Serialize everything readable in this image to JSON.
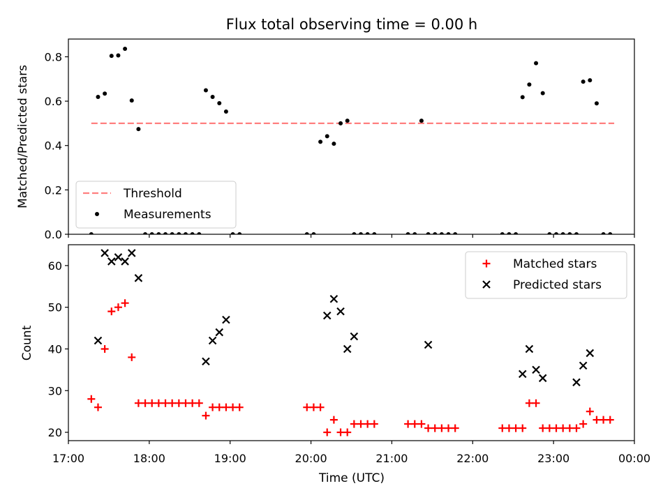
{
  "chart_data": [
    {
      "type": "scatter",
      "title": "Flux total observing time = 0.00 h",
      "xlabel": "",
      "ylabel": "Matched/Predicted stars",
      "xlim": [
        "17:00",
        "00:00"
      ],
      "ylim": [
        0,
        0.88
      ],
      "y_ticks": [
        "0.0",
        "0.2",
        "0.4",
        "0.6",
        "0.8"
      ],
      "grid": false,
      "legend": "lower-left",
      "series": [
        {
          "name": "Threshold",
          "kind": "dashed-line",
          "color": "#ff7f7f",
          "x": [
            "17:17",
            "23:45"
          ],
          "y": [
            0.5,
            0.5
          ]
        },
        {
          "name": "Measurements",
          "kind": "dot",
          "color": "#000000",
          "x": [
            "17:17",
            "17:22",
            "17:27",
            "17:32",
            "17:37",
            "17:42",
            "17:47",
            "17:52",
            "17:57",
            "18:02",
            "18:07",
            "18:12",
            "18:17",
            "18:22",
            "18:27",
            "18:32",
            "18:37",
            "18:42",
            "18:47",
            "18:52",
            "18:57",
            "19:02",
            "19:07",
            "19:57",
            "20:02",
            "20:07",
            "20:12",
            "20:17",
            "20:22",
            "20:27",
            "20:32",
            "20:37",
            "20:42",
            "20:47",
            "21:12",
            "21:17",
            "21:22",
            "21:27",
            "21:32",
            "21:37",
            "21:42",
            "21:47",
            "22:22",
            "22:27",
            "22:32",
            "22:37",
            "22:42",
            "22:47",
            "22:52",
            "22:57",
            "23:02",
            "23:07",
            "23:12",
            "23:17",
            "23:22",
            "23:27",
            "23:32",
            "23:37",
            "23:42"
          ],
          "y": [
            0.0,
            0.619,
            0.634,
            0.804,
            0.806,
            0.836,
            0.603,
            0.474,
            0.0,
            0.0,
            0.0,
            0.0,
            0.0,
            0.0,
            0.0,
            0.0,
            0.0,
            0.649,
            0.619,
            0.591,
            0.553,
            0.0,
            0.0,
            0.0,
            0.0,
            0.417,
            0.442,
            0.408,
            0.5,
            0.512,
            0.0,
            0.0,
            0.0,
            0.0,
            0.0,
            0.0,
            0.512,
            0.0,
            0.0,
            0.0,
            0.0,
            0.0,
            0.0,
            0.0,
            0.0,
            0.618,
            0.675,
            0.771,
            0.636,
            0.0,
            0.0,
            0.0,
            0.0,
            0.0,
            0.688,
            0.694,
            0.59,
            0.0,
            0.0
          ]
        }
      ]
    },
    {
      "type": "scatter",
      "title": "",
      "xlabel": "Time (UTC)",
      "ylabel": "Count",
      "xlim": [
        "17:00",
        "00:00"
      ],
      "ylim": [
        18,
        65
      ],
      "x_ticks": [
        "17:00",
        "18:00",
        "19:00",
        "20:00",
        "21:00",
        "22:00",
        "23:00",
        "00:00"
      ],
      "y_ticks": [
        "20",
        "30",
        "40",
        "50",
        "60"
      ],
      "grid": false,
      "legend": "upper-right",
      "series": [
        {
          "name": "Matched stars",
          "marker": "plus",
          "color": "#ff0000",
          "x": [
            "17:17",
            "17:22",
            "17:27",
            "17:32",
            "17:37",
            "17:42",
            "17:47",
            "17:52",
            "17:57",
            "18:02",
            "18:07",
            "18:12",
            "18:17",
            "18:22",
            "18:27",
            "18:32",
            "18:37",
            "18:42",
            "18:47",
            "18:52",
            "18:57",
            "19:02",
            "19:07",
            "19:57",
            "20:02",
            "20:07",
            "20:12",
            "20:17",
            "20:22",
            "20:27",
            "20:32",
            "20:37",
            "20:42",
            "20:47",
            "21:12",
            "21:17",
            "21:22",
            "21:27",
            "21:32",
            "21:37",
            "21:42",
            "21:47",
            "22:22",
            "22:27",
            "22:32",
            "22:37",
            "22:42",
            "22:47",
            "22:52",
            "22:57",
            "23:02",
            "23:07",
            "23:12",
            "23:17",
            "23:22",
            "23:27",
            "23:32",
            "23:37",
            "23:42"
          ],
          "y": [
            28,
            26,
            40,
            49,
            50,
            51,
            38,
            27,
            27,
            27,
            27,
            27,
            27,
            27,
            27,
            27,
            27,
            24,
            26,
            26,
            26,
            26,
            26,
            26,
            26,
            26,
            20,
            23,
            20,
            20,
            22,
            22,
            22,
            22,
            22,
            22,
            22,
            21,
            21,
            21,
            21,
            21,
            21,
            21,
            21,
            21,
            27,
            27,
            21,
            21,
            21,
            21,
            21,
            21,
            22,
            25,
            23,
            23,
            23
          ]
        },
        {
          "name": "Predicted stars",
          "marker": "x",
          "color": "#000000",
          "x": [
            "17:22",
            "17:27",
            "17:32",
            "17:37",
            "17:42",
            "17:47",
            "17:52",
            "18:42",
            "18:47",
            "18:52",
            "18:57",
            "20:12",
            "20:17",
            "20:22",
            "20:27",
            "20:32",
            "21:27",
            "22:37",
            "22:42",
            "22:47",
            "22:52",
            "23:17",
            "23:22",
            "23:27"
          ],
          "y": [
            42,
            63,
            61,
            62,
            61,
            63,
            57,
            37,
            42,
            44,
            47,
            48,
            52,
            49,
            40,
            43,
            41,
            34,
            40,
            35,
            33,
            32,
            36,
            39
          ]
        }
      ]
    }
  ]
}
